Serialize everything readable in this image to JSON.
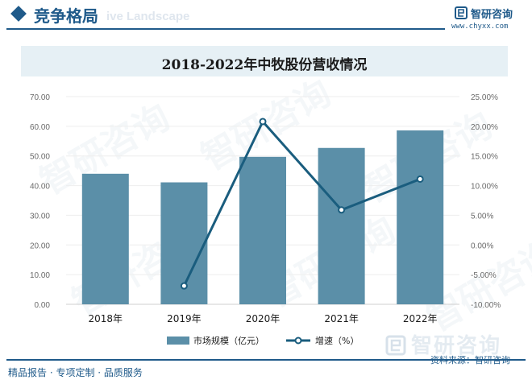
{
  "header": {
    "section_title": "竞争格局",
    "bg_text": "ive Landscape",
    "brand_name": "智研咨询",
    "brand_url": "www.chyxx.com"
  },
  "watermark": "智研咨询",
  "chart_data": {
    "type": "bar",
    "title": "2018-2022年中牧股份营收情况",
    "categories": [
      "2018年",
      "2019年",
      "2020年",
      "2021年",
      "2022年"
    ],
    "series": [
      {
        "name": "市场规模（亿元）",
        "kind": "bar",
        "axis": "left",
        "color": "#5b8fa8",
        "values": [
          44.0,
          41.1,
          49.7,
          52.7,
          58.6
        ]
      },
      {
        "name": "增速（%）",
        "kind": "line",
        "axis": "right",
        "color": "#1a5d7e",
        "values": [
          null,
          -6.9,
          20.8,
          5.9,
          11.1
        ]
      }
    ],
    "y_left": {
      "min": 0,
      "max": 70,
      "step": 10,
      "ticks": [
        "0.00",
        "10.00",
        "20.00",
        "30.00",
        "40.00",
        "50.00",
        "60.00",
        "70.00"
      ]
    },
    "y_right": {
      "min": -10,
      "max": 25,
      "step": 5,
      "ticks": [
        "-10.00%",
        "-5.00%",
        "0.00%",
        "5.00%",
        "10.00%",
        "15.00%",
        "20.00%",
        "25.00%"
      ]
    },
    "legend": [
      "市场规模（亿元）",
      "增速（%）"
    ]
  },
  "footer": {
    "brand": "智研咨询",
    "source": "资料来源：智研咨询",
    "tagline": "精品报告 · 专项定制 · 品质服务"
  }
}
